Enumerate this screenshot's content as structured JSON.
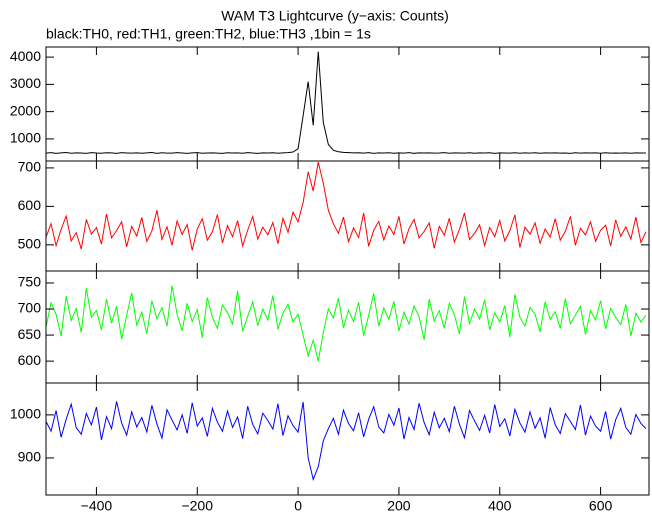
{
  "title": "WAM T3 Lightcurve (y−axis: Counts)",
  "subtitle": "black:TH0, red:TH1, green:TH2, blue:TH3 ,1bin = 1s",
  "chart_data": [
    {
      "type": "line",
      "xlim": [
        -500,
        696
      ],
      "xticks": [
        -400,
        -200,
        0,
        200,
        400,
        600
      ],
      "ylim": [
        190,
        4370
      ],
      "yticks": [
        1000,
        2000,
        3000,
        4000
      ],
      "x": [
        -500,
        -490,
        -480,
        -470,
        -460,
        -450,
        -440,
        -430,
        -420,
        -410,
        -400,
        -390,
        -380,
        -370,
        -360,
        -350,
        -340,
        -330,
        -320,
        -310,
        -300,
        -290,
        -280,
        -270,
        -260,
        -250,
        -240,
        -230,
        -220,
        -210,
        -200,
        -190,
        -180,
        -170,
        -160,
        -150,
        -140,
        -130,
        -120,
        -110,
        -100,
        -90,
        -80,
        -70,
        -60,
        -50,
        -40,
        -30,
        -20,
        -10,
        0,
        10,
        20,
        30,
        40,
        50,
        60,
        70,
        80,
        90,
        100,
        110,
        120,
        130,
        140,
        150,
        160,
        170,
        180,
        190,
        200,
        210,
        220,
        230,
        240,
        250,
        260,
        270,
        280,
        290,
        300,
        310,
        320,
        330,
        340,
        350,
        360,
        370,
        380,
        390,
        400,
        410,
        420,
        430,
        440,
        450,
        460,
        470,
        480,
        490,
        500,
        510,
        520,
        530,
        540,
        550,
        560,
        570,
        580,
        590,
        600,
        610,
        620,
        630,
        640,
        650,
        660,
        670,
        680,
        690
      ],
      "series": [
        {
          "color": "#000000",
          "values": [
            480,
            495,
            470,
            488,
            502,
            476,
            490,
            484,
            468,
            497,
            481,
            476,
            493,
            487,
            470,
            499,
            483,
            478,
            490,
            474,
            486,
            501,
            469,
            492,
            480,
            477,
            495,
            483,
            471,
            488,
            496,
            474,
            485,
            490,
            479,
            468,
            493,
            482,
            487,
            476,
            498,
            481,
            470,
            489,
            484,
            492,
            475,
            487,
            498,
            520,
            640,
            1850,
            3100,
            1500,
            4200,
            1600,
            800,
            580,
            530,
            505,
            495,
            488,
            492,
            480,
            497,
            470,
            486,
            483,
            491,
            476,
            488,
            479,
            495,
            472,
            487,
            484,
            490,
            477,
            482,
            496,
            473,
            488,
            485,
            479,
            492,
            475,
            489,
            481,
            494,
            470,
            486,
            483,
            478,
            491,
            476,
            488,
            480,
            493,
            474,
            487,
            482,
            490,
            477,
            485,
            471,
            494,
            479,
            486,
            483,
            488,
            475,
            492,
            480,
            484,
            478,
            490,
            473,
            487,
            482,
            485
          ]
        }
      ]
    },
    {
      "type": "line",
      "xlim": [
        -500,
        696
      ],
      "xticks": [
        -400,
        -200,
        0,
        200,
        400,
        600
      ],
      "ylim": [
        432,
        718
      ],
      "yticks": [
        500,
        600,
        700
      ],
      "x": [
        -500,
        -490,
        -480,
        -470,
        -460,
        -450,
        -440,
        -430,
        -420,
        -410,
        -400,
        -390,
        -380,
        -370,
        -360,
        -350,
        -340,
        -330,
        -320,
        -310,
        -300,
        -290,
        -280,
        -270,
        -260,
        -250,
        -240,
        -230,
        -220,
        -210,
        -200,
        -190,
        -180,
        -170,
        -160,
        -150,
        -140,
        -130,
        -120,
        -110,
        -100,
        -90,
        -80,
        -70,
        -60,
        -50,
        -40,
        -30,
        -20,
        -10,
        0,
        10,
        20,
        30,
        40,
        50,
        60,
        70,
        80,
        90,
        100,
        110,
        120,
        130,
        140,
        150,
        160,
        170,
        180,
        190,
        200,
        210,
        220,
        230,
        240,
        250,
        260,
        270,
        280,
        290,
        300,
        310,
        320,
        330,
        340,
        350,
        360,
        370,
        380,
        390,
        400,
        410,
        420,
        430,
        440,
        450,
        460,
        470,
        480,
        490,
        500,
        510,
        520,
        530,
        540,
        550,
        560,
        570,
        580,
        590,
        600,
        610,
        620,
        630,
        640,
        650,
        660,
        670,
        680,
        690
      ],
      "series": [
        {
          "color": "#ff0000",
          "values": [
            520,
            555,
            498,
            540,
            575,
            510,
            532,
            489,
            566,
            528,
            545,
            502,
            580,
            518,
            537,
            560,
            495,
            548,
            523,
            571,
            509,
            536,
            590,
            514,
            547,
            499,
            562,
            527,
            553,
            486,
            541,
            568,
            512,
            534,
            579,
            505,
            550,
            521,
            563,
            497,
            538,
            574,
            515,
            546,
            526,
            558,
            503,
            569,
            533,
            585,
            560,
            610,
            690,
            640,
            715,
            660,
            590,
            555,
            530,
            572,
            508,
            544,
            519,
            583,
            496,
            538,
            561,
            513,
            549,
            527,
            574,
            502,
            542,
            566,
            518,
            535,
            557,
            491,
            548,
            525,
            569,
            507,
            540,
            583,
            514,
            530,
            552,
            498,
            545,
            521,
            563,
            510,
            537,
            578,
            493,
            546,
            528,
            557,
            504,
            541,
            520,
            568,
            512,
            535,
            574,
            499,
            543,
            526,
            560,
            509,
            538,
            551,
            497,
            565,
            522,
            547,
            515,
            572,
            506,
            534
          ]
        }
      ]
    },
    {
      "type": "line",
      "xlim": [
        -500,
        696
      ],
      "xticks": [
        -400,
        -200,
        0,
        200,
        400,
        600
      ],
      "ylim": [
        558,
        773
      ],
      "yticks": [
        600,
        650,
        700,
        750
      ],
      "x": [
        -500,
        -490,
        -480,
        -470,
        -460,
        -450,
        -440,
        -430,
        -420,
        -410,
        -400,
        -390,
        -380,
        -370,
        -360,
        -350,
        -340,
        -330,
        -320,
        -310,
        -300,
        -290,
        -280,
        -270,
        -260,
        -250,
        -240,
        -230,
        -220,
        -210,
        -200,
        -190,
        -180,
        -170,
        -160,
        -150,
        -140,
        -130,
        -120,
        -110,
        -100,
        -90,
        -80,
        -70,
        -60,
        -50,
        -40,
        -30,
        -20,
        -10,
        0,
        10,
        20,
        30,
        40,
        50,
        60,
        70,
        80,
        90,
        100,
        110,
        120,
        130,
        140,
        150,
        160,
        170,
        180,
        190,
        200,
        210,
        220,
        230,
        240,
        250,
        260,
        270,
        280,
        290,
        300,
        310,
        320,
        330,
        340,
        350,
        360,
        370,
        380,
        390,
        400,
        410,
        420,
        430,
        440,
        450,
        460,
        470,
        480,
        490,
        500,
        510,
        520,
        530,
        540,
        550,
        560,
        570,
        580,
        590,
        600,
        610,
        620,
        630,
        640,
        650,
        660,
        670,
        680,
        690
      ],
      "series": [
        {
          "color": "#00ff00",
          "values": [
            665,
            712,
            690,
            648,
            725,
            678,
            701,
            655,
            740,
            684,
            697,
            660,
            719,
            673,
            705,
            642,
            688,
            731,
            669,
            694,
            652,
            716,
            681,
            703,
            667,
            745,
            690,
            658,
            711,
            676,
            699,
            645,
            722,
            684,
            663,
            708,
            693,
            671,
            735,
            657,
            686,
            714,
            668,
            700,
            679,
            726,
            661,
            692,
            709,
            675,
            690,
            650,
            610,
            640,
            600,
            655,
            700,
            683,
            721,
            664,
            698,
            676,
            713,
            649,
            688,
            730,
            667,
            702,
            680,
            715,
            658,
            694,
            671,
            706,
            685,
            641,
            719,
            677,
            697,
            663,
            711,
            689,
            652,
            724,
            672,
            700,
            681,
            718,
            660,
            693,
            675,
            707,
            646,
            728,
            684,
            667,
            703,
            690,
            656,
            714,
            680,
            695,
            663,
            720,
            672,
            688,
            705,
            651,
            697,
            679,
            716,
            662,
            701,
            684,
            670,
            709,
            648,
            692,
            675,
            688
          ]
        }
      ]
    },
    {
      "type": "line",
      "xlim": [
        -500,
        696
      ],
      "xticks": [
        {
          "value": -400,
          "label": "−400"
        },
        {
          "value": -200,
          "label": "−200"
        },
        0,
        200,
        400,
        600
      ],
      "ylim": [
        814,
        1074
      ],
      "yticks": [
        900,
        1000
      ],
      "x": [
        -500,
        -490,
        -480,
        -470,
        -460,
        -450,
        -440,
        -430,
        -420,
        -410,
        -400,
        -390,
        -380,
        -370,
        -360,
        -350,
        -340,
        -330,
        -320,
        -310,
        -300,
        -290,
        -280,
        -270,
        -260,
        -250,
        -240,
        -230,
        -220,
        -210,
        -200,
        -190,
        -180,
        -170,
        -160,
        -150,
        -140,
        -130,
        -120,
        -110,
        -100,
        -90,
        -80,
        -70,
        -60,
        -50,
        -40,
        -30,
        -20,
        -10,
        0,
        10,
        20,
        30,
        40,
        50,
        60,
        70,
        80,
        90,
        100,
        110,
        120,
        130,
        140,
        150,
        160,
        170,
        180,
        190,
        200,
        210,
        220,
        230,
        240,
        250,
        260,
        270,
        280,
        290,
        300,
        310,
        320,
        330,
        340,
        350,
        360,
        370,
        380,
        390,
        400,
        410,
        420,
        430,
        440,
        450,
        460,
        470,
        480,
        490,
        500,
        510,
        520,
        530,
        540,
        550,
        560,
        570,
        580,
        590,
        600,
        610,
        620,
        630,
        640,
        650,
        660,
        670,
        680,
        690
      ],
      "series": [
        {
          "color": "#0000ff",
          "values": [
            985,
            962,
            1010,
            948,
            990,
            1025,
            970,
            955,
            1003,
            977,
            1018,
            942,
            996,
            968,
            1031,
            981,
            953,
            1007,
            972,
            994,
            960,
            1022,
            979,
            946,
            1012,
            988,
            965,
            1000,
            957,
            1028,
            974,
            993,
            950,
            1015,
            983,
            962,
            1009,
            971,
            995,
            945,
            1020,
            978,
            956,
            1004,
            987,
            967,
            1026,
            952,
            998,
            975,
            960,
            1030,
            900,
            850,
            880,
            940,
            968,
            992,
            955,
            1011,
            980,
            963,
            1005,
            949,
            990,
            1019,
            972,
            958,
            1001,
            976,
            1016,
            944,
            994,
            966,
            1027,
            982,
            954,
            1006,
            970,
            992,
            961,
            1020,
            978,
            947,
            1010,
            986,
            964,
            999,
            958,
            1024,
            973,
            991,
            951,
            1013,
            981,
            960,
            1007,
            969,
            993,
            946,
            1017,
            977,
            957,
            1003,
            985,
            966,
            1023,
            953,
            997,
            974,
            962,
            1008,
            944,
            989,
            1015,
            971,
            955,
            1001,
            980,
            968
          ]
        }
      ]
    }
  ]
}
